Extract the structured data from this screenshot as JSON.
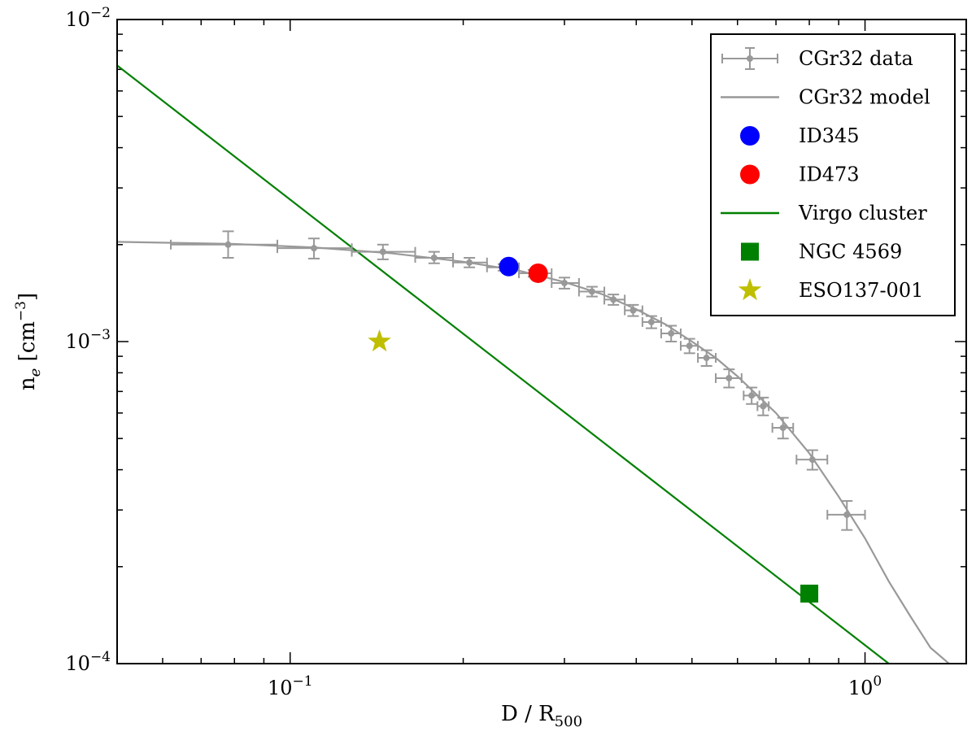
{
  "chart_data": {
    "type": "scatter",
    "xscale": "log",
    "yscale": "log",
    "xlim": [
      0.05,
      1.5
    ],
    "ylim": [
      0.0001,
      0.01
    ],
    "xlabel": {
      "main": "D / R",
      "sub": "500"
    },
    "ylabel": {
      "main": "n",
      "sub": "e",
      "unit_open": " [cm",
      "sup": "−3",
      "unit_close": "]"
    },
    "x_major_ticks": [
      {
        "value": 0.1,
        "base": "10",
        "exp": "−1"
      },
      {
        "value": 1.0,
        "base": "10",
        "exp": "0"
      }
    ],
    "y_major_ticks": [
      {
        "value": 0.0001,
        "base": "10",
        "exp": "−4"
      },
      {
        "value": 0.001,
        "base": "10",
        "exp": "−3"
      },
      {
        "value": 0.01,
        "base": "10",
        "exp": "−2"
      }
    ],
    "series": [
      {
        "name": "CGr32 data",
        "kind": "errorbar",
        "color": "#999999",
        "points": [
          {
            "x": 0.078,
            "y": 0.002,
            "xerr": [
              0.062,
              0.095
            ],
            "yerr": [
              0.00182,
              0.0022
            ]
          },
          {
            "x": 0.11,
            "y": 0.00195,
            "xerr": [
              0.095,
              0.128
            ],
            "yerr": [
              0.00181,
              0.00209
            ]
          },
          {
            "x": 0.145,
            "y": 0.0019,
            "xerr": [
              0.128,
              0.165
            ],
            "yerr": [
              0.0018,
              0.002
            ]
          },
          {
            "x": 0.178,
            "y": 0.00182,
            "xerr": [
              0.165,
              0.192
            ],
            "yerr": [
              0.00175,
              0.0019
            ]
          },
          {
            "x": 0.205,
            "y": 0.00176,
            "xerr": [
              0.192,
              0.22
            ],
            "yerr": [
              0.0017,
              0.00182
            ]
          },
          {
            "x": 0.235,
            "y": 0.0017,
            "xerr": [
              0.22,
              0.25
            ],
            "yerr": [
              0.00166,
              0.00174
            ]
          },
          {
            "x": 0.265,
            "y": 0.00163,
            "xerr": [
              0.25,
              0.285
            ],
            "yerr": [
              0.00159,
              0.00167
            ]
          },
          {
            "x": 0.3,
            "y": 0.00152,
            "xerr": [
              0.285,
              0.318
            ],
            "yerr": [
              0.00146,
              0.00158
            ]
          },
          {
            "x": 0.335,
            "y": 0.00143,
            "xerr": [
              0.318,
              0.352
            ],
            "yerr": [
              0.00138,
              0.00148
            ]
          },
          {
            "x": 0.365,
            "y": 0.00135,
            "xerr": [
              0.352,
              0.382
            ],
            "yerr": [
              0.0013,
              0.0014
            ]
          },
          {
            "x": 0.395,
            "y": 0.00125,
            "xerr": [
              0.382,
              0.41
            ],
            "yerr": [
              0.0012,
              0.0013
            ]
          },
          {
            "x": 0.425,
            "y": 0.00115,
            "xerr": [
              0.41,
              0.442
            ],
            "yerr": [
              0.0011,
              0.0012
            ]
          },
          {
            "x": 0.46,
            "y": 0.00106,
            "xerr": [
              0.442,
              0.478
            ],
            "yerr": [
              0.001,
              0.00112
            ]
          },
          {
            "x": 0.495,
            "y": 0.00097,
            "xerr": [
              0.478,
              0.512
            ],
            "yerr": [
              0.00092,
              0.00102
            ]
          },
          {
            "x": 0.53,
            "y": 0.00089,
            "xerr": [
              0.512,
              0.55
            ],
            "yerr": [
              0.00084,
              0.00094
            ]
          },
          {
            "x": 0.58,
            "y": 0.00077,
            "xerr": [
              0.55,
              0.61
            ],
            "yerr": [
              0.00072,
              0.00082
            ]
          },
          {
            "x": 0.635,
            "y": 0.00068,
            "xerr": [
              0.615,
              0.655
            ],
            "yerr": [
              0.00064,
              0.00072
            ]
          },
          {
            "x": 0.665,
            "y": 0.00063,
            "xerr": [
              0.65,
              0.68
            ],
            "yerr": [
              0.00059,
              0.00067
            ]
          },
          {
            "x": 0.72,
            "y": 0.00054,
            "xerr": [
              0.69,
              0.75
            ],
            "yerr": [
              0.0005,
              0.00058
            ]
          },
          {
            "x": 0.81,
            "y": 0.00043,
            "xerr": [
              0.76,
              0.86
            ],
            "yerr": [
              0.0004,
              0.00046
            ]
          },
          {
            "x": 0.93,
            "y": 0.00029,
            "xerr": [
              0.86,
              1.0
            ],
            "yerr": [
              0.00026,
              0.00032
            ]
          }
        ]
      },
      {
        "name": "CGr32 model",
        "kind": "line",
        "color": "#999999",
        "points": [
          [
            0.05,
            0.00204
          ],
          [
            0.08,
            0.00201
          ],
          [
            0.11,
            0.00196
          ],
          [
            0.15,
            0.00188
          ],
          [
            0.2,
            0.00177
          ],
          [
            0.25,
            0.00166
          ],
          [
            0.3,
            0.00153
          ],
          [
            0.35,
            0.0014
          ],
          [
            0.4,
            0.00126
          ],
          [
            0.45,
            0.00113
          ],
          [
            0.5,
            0.001
          ],
          [
            0.55,
            0.00089
          ],
          [
            0.6,
            0.00078
          ],
          [
            0.7,
            0.0006
          ],
          [
            0.8,
            0.00045
          ],
          [
            0.9,
            0.00033
          ],
          [
            1.0,
            0.000245
          ],
          [
            1.1,
            0.00018
          ],
          [
            1.2,
            0.00014
          ],
          [
            1.3,
            0.000112
          ],
          [
            1.4,
            0.0001
          ]
        ]
      },
      {
        "name": "ID345",
        "kind": "marker",
        "marker": "circle",
        "color": "#0000ff",
        "points": [
          [
            0.24,
            0.00171
          ]
        ]
      },
      {
        "name": "ID473",
        "kind": "marker",
        "marker": "circle",
        "color": "#ff0000",
        "points": [
          [
            0.27,
            0.00163
          ]
        ]
      },
      {
        "name": "Virgo cluster",
        "kind": "line",
        "color": "#008000",
        "points": [
          [
            0.05,
            0.0072
          ],
          [
            1.1,
            0.0001
          ]
        ]
      },
      {
        "name": "NGC 4569",
        "kind": "marker",
        "marker": "square",
        "color": "#008000",
        "points": [
          [
            0.8,
            0.000165
          ]
        ]
      },
      {
        "name": "ESO137-001",
        "kind": "marker",
        "marker": "star",
        "color": "#bfbf00",
        "points": [
          [
            0.143,
            0.001
          ]
        ]
      }
    ],
    "legend_position": "top-right"
  }
}
